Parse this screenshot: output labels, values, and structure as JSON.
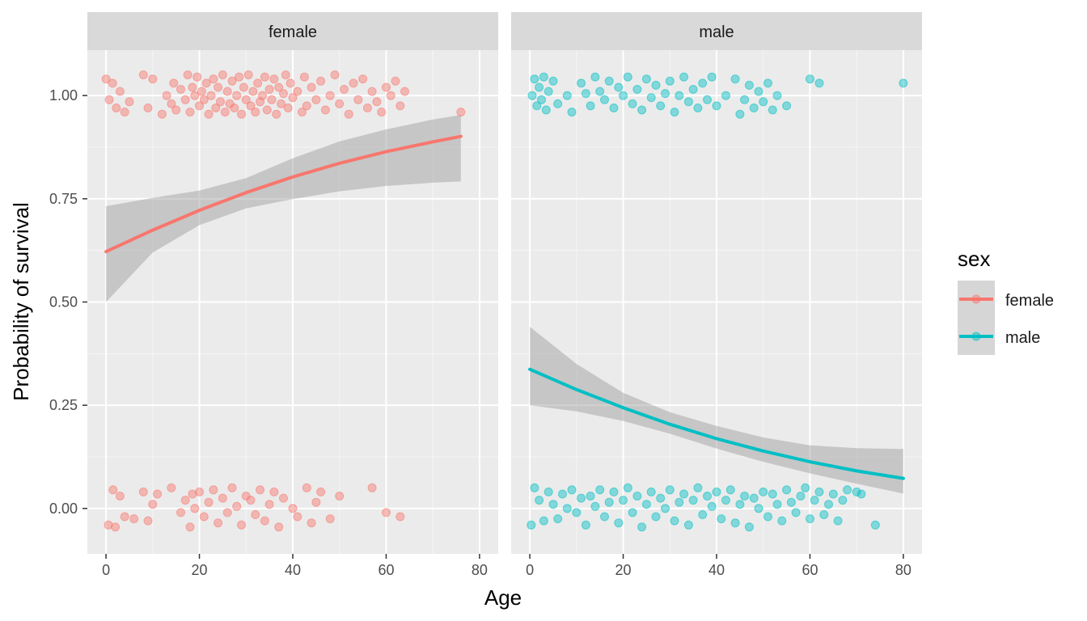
{
  "chart_data": {
    "type": "scatter",
    "facet_variable": "sex",
    "xlabel": "Age",
    "ylabel": "Probability of survival",
    "xlim": [
      -4,
      84
    ],
    "ylim": [
      -0.11,
      1.11
    ],
    "x_ticks": [
      0,
      20,
      40,
      60,
      80
    ],
    "x_tick_labels": [
      "0",
      "20",
      "40",
      "60",
      "80"
    ],
    "y_ticks": [
      0,
      0.25,
      0.5,
      0.75,
      1.0
    ],
    "y_tick_labels": [
      "0.00",
      "0.25",
      "0.50",
      "0.75",
      "1.00"
    ],
    "grid": true,
    "legend": {
      "title": "sex",
      "position": "right",
      "entries": [
        {
          "label": "female",
          "color": "#F8766D"
        },
        {
          "label": "male",
          "color": "#00BFC4"
        }
      ]
    },
    "panels": [
      {
        "strip_label": "female",
        "color": "#F8766D",
        "fit": {
          "x": [
            0,
            10,
            20,
            30,
            40,
            50,
            60,
            70,
            76
          ],
          "y": [
            0.622,
            0.674,
            0.722,
            0.765,
            0.803,
            0.836,
            0.864,
            0.888,
            0.901
          ],
          "lower": [
            0.5,
            0.62,
            0.686,
            0.727,
            0.749,
            0.768,
            0.781,
            0.789,
            0.792
          ],
          "upper": [
            0.732,
            0.752,
            0.77,
            0.8,
            0.848,
            0.889,
            0.918,
            0.942,
            0.953
          ]
        },
        "points": {
          "survived": {
            "x": [
              0,
              0.7,
              1.4,
              2.2,
              3,
              4,
              5,
              8,
              9,
              10,
              12,
              13,
              14,
              14.5,
              15,
              16,
              17,
              17.5,
              18,
              18.5,
              19,
              19.5,
              20,
              20.5,
              21,
              21.5,
              22,
              22.5,
              23,
              23.5,
              24,
              24.5,
              25,
              25.5,
              26,
              26.5,
              27,
              27.5,
              28,
              28.5,
              29,
              29.5,
              30,
              30.5,
              31,
              31.5,
              32,
              32.5,
              33,
              33.5,
              34,
              34.5,
              35,
              35.5,
              36,
              36.5,
              37,
              37.5,
              38,
              38.5,
              39,
              39.5,
              40,
              41,
              42,
              42.5,
              43,
              44,
              45,
              46,
              47,
              48,
              49,
              50,
              51,
              52,
              53,
              54,
              55,
              56,
              57,
              58,
              59,
              60,
              61,
              62,
              63,
              64,
              76
            ],
            "y": [
              1.04,
              0.99,
              1.03,
              0.97,
              1.01,
              0.96,
              0.985,
              1.05,
              0.97,
              1.04,
              0.955,
              1.0,
              0.98,
              1.03,
              0.965,
              1.015,
              0.99,
              1.05,
              0.96,
              1.02,
              1.0,
              1.045,
              0.975,
              1.01,
              0.99,
              1.03,
              0.955,
              1.0,
              1.04,
              0.97,
              1.02,
              0.985,
              1.05,
              0.96,
              1.01,
              0.98,
              1.035,
              0.97,
              1.0,
              1.045,
              0.955,
              1.02,
              0.99,
              1.05,
              0.975,
              1.01,
              0.96,
              1.03,
              0.985,
              1.0,
              1.045,
              0.965,
              1.015,
              0.99,
              1.04,
              0.955,
              1.02,
              0.98,
              1.005,
              1.05,
              0.97,
              1.03,
              0.995,
              1.01,
              0.96,
              1.045,
              0.975,
              1.02,
              0.99,
              1.035,
              0.965,
              1.0,
              1.05,
              0.98,
              1.015,
              0.955,
              1.03,
              0.99,
              1.04,
              0.97,
              1.01,
              0.985,
              0.96,
              1.02,
              1.0,
              1.035,
              0.975,
              1.01,
              0.96
            ],
            "mapping_example": "(age, jittered outcome)"
          },
          "died": {
            "x": [
              0.5,
              1.5,
              2,
              3,
              4,
              6,
              8,
              9,
              10,
              11,
              14,
              16,
              17,
              18,
              18.5,
              19,
              20,
              21,
              22,
              23,
              24,
              25,
              26,
              27,
              28,
              29,
              30,
              31,
              32,
              33,
              34,
              35,
              36,
              37,
              38,
              40,
              41,
              43,
              44,
              45,
              46,
              48,
              50,
              57,
              60,
              63
            ],
            "y": [
              -0.04,
              0.045,
              -0.045,
              0.03,
              -0.02,
              -0.025,
              0.04,
              -0.03,
              0.01,
              0.035,
              0.05,
              -0.01,
              0.02,
              -0.045,
              0.035,
              0.0,
              0.04,
              -0.02,
              0.015,
              0.045,
              -0.035,
              0.025,
              -0.01,
              0.05,
              0.005,
              -0.04,
              0.03,
              0.02,
              -0.015,
              0.045,
              -0.03,
              0.01,
              0.04,
              -0.045,
              0.025,
              0.0,
              -0.02,
              0.05,
              -0.035,
              0.015,
              0.04,
              -0.025,
              0.03,
              0.05,
              -0.01,
              -0.02
            ]
          }
        }
      },
      {
        "strip_label": "male",
        "color": "#00BFC4",
        "fit": {
          "x": [
            0,
            10,
            20,
            30,
            40,
            50,
            60,
            70,
            80
          ],
          "y": [
            0.337,
            0.288,
            0.244,
            0.204,
            0.169,
            0.139,
            0.113,
            0.091,
            0.073
          ],
          "lower": [
            0.25,
            0.235,
            0.212,
            0.181,
            0.145,
            0.113,
            0.085,
            0.06,
            0.036
          ],
          "upper": [
            0.44,
            0.35,
            0.28,
            0.233,
            0.2,
            0.172,
            0.153,
            0.146,
            0.144
          ]
        },
        "points": {
          "survived": {
            "x": [
              0.5,
              1,
              1.5,
              2,
              2.5,
              3,
              3.5,
              4,
              5,
              6,
              8,
              9,
              11,
              12,
              13,
              14,
              15,
              16,
              17,
              18,
              19,
              20,
              21,
              22,
              23,
              24,
              25,
              26,
              27,
              28,
              29,
              30,
              31,
              32,
              33,
              34,
              35,
              36,
              37,
              38,
              39,
              40,
              42,
              44,
              45,
              46,
              47,
              48,
              49,
              50,
              51,
              52,
              53,
              55,
              60,
              62,
              80
            ],
            "y": [
              1.0,
              1.04,
              0.975,
              1.02,
              0.99,
              1.045,
              0.965,
              1.01,
              1.035,
              0.98,
              1.0,
              0.96,
              1.03,
              1.005,
              0.975,
              1.045,
              1.01,
              0.99,
              1.035,
              0.97,
              1.02,
              1.0,
              1.045,
              0.98,
              1.015,
              0.965,
              1.04,
              0.995,
              1.025,
              0.975,
              1.005,
              1.035,
              0.96,
              1.0,
              1.045,
              0.985,
              1.015,
              0.97,
              1.03,
              0.99,
              1.045,
              0.975,
              1.0,
              1.04,
              0.955,
              0.99,
              1.025,
              0.97,
              1.01,
              0.985,
              1.03,
              0.965,
              1.0,
              0.975,
              1.04,
              1.03,
              1.03
            ]
          },
          "died": {
            "x": [
              0.3,
              1,
              2,
              3,
              4,
              5,
              6,
              7,
              8,
              9,
              10,
              11,
              12,
              13,
              14,
              15,
              16,
              17,
              18,
              19,
              20,
              21,
              22,
              23,
              24,
              25,
              26,
              27,
              28,
              29,
              30,
              31,
              32,
              33,
              34,
              35,
              36,
              37,
              38,
              39,
              40,
              41,
              42,
              43,
              44,
              45,
              46,
              47,
              48,
              49,
              50,
              51,
              52,
              53,
              54,
              55,
              56,
              57,
              58,
              59,
              60,
              61,
              62,
              63,
              64,
              65,
              66,
              67,
              68,
              70,
              71,
              74
            ],
            "y": [
              -0.04,
              0.05,
              0.02,
              -0.03,
              0.04,
              0.01,
              -0.025,
              0.035,
              0.0,
              0.045,
              -0.01,
              0.025,
              -0.04,
              0.03,
              0.005,
              0.045,
              -0.02,
              0.015,
              0.04,
              -0.035,
              0.02,
              0.05,
              -0.01,
              0.03,
              -0.045,
              0.01,
              0.04,
              -0.02,
              0.025,
              0.0,
              0.045,
              -0.03,
              0.015,
              0.035,
              -0.04,
              0.02,
              0.05,
              -0.015,
              0.03,
              0.005,
              0.04,
              -0.025,
              0.02,
              0.045,
              -0.035,
              0.01,
              0.03,
              -0.045,
              0.025,
              0.0,
              0.04,
              -0.02,
              0.035,
              0.01,
              -0.03,
              0.045,
              0.015,
              -0.01,
              0.03,
              0.05,
              -0.025,
              0.02,
              0.04,
              -0.015,
              0.01,
              0.035,
              -0.03,
              0.02,
              0.045,
              0.04,
              0.035,
              -0.04
            ]
          }
        }
      }
    ]
  }
}
